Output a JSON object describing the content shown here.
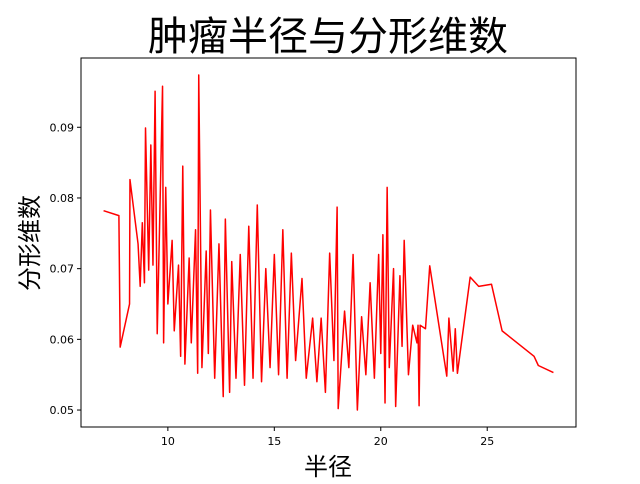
{
  "chart_data": {
    "type": "line",
    "title": "肿瘤半径与分形维数",
    "x_label": "半径",
    "y_label": "分形维数",
    "xlim": [
      5.92,
      29.17
    ],
    "ylim": [
      0.0476,
      0.0998
    ],
    "xticks": [
      10,
      15,
      20,
      25
    ],
    "yticks": [
      0.05,
      0.06,
      0.07,
      0.08,
      0.09
    ],
    "grid": false,
    "x": [
      6.98,
      7.7,
      7.76,
      8.2,
      8.22,
      8.6,
      8.7,
      8.8,
      8.9,
      8.95,
      9.1,
      9.2,
      9.3,
      9.4,
      9.5,
      9.6,
      9.75,
      9.8,
      9.9,
      10.0,
      10.2,
      10.3,
      10.5,
      10.6,
      10.7,
      10.8,
      11.0,
      11.1,
      11.3,
      11.4,
      11.45,
      11.6,
      11.8,
      11.9,
      12.0,
      12.2,
      12.4,
      12.6,
      12.7,
      12.9,
      13.0,
      13.2,
      13.4,
      13.6,
      13.8,
      14.0,
      14.2,
      14.4,
      14.6,
      14.8,
      15.0,
      15.2,
      15.4,
      15.6,
      15.8,
      16.0,
      16.3,
      16.5,
      16.8,
      17.0,
      17.2,
      17.4,
      17.6,
      17.8,
      17.95,
      18.0,
      18.3,
      18.5,
      18.7,
      18.9,
      19.1,
      19.3,
      19.5,
      19.7,
      19.9,
      20.0,
      20.1,
      20.2,
      20.3,
      20.4,
      20.6,
      20.7,
      20.9,
      21.0,
      21.1,
      21.3,
      21.5,
      21.7,
      21.75,
      21.8,
      21.85,
      22.1,
      22.3,
      23.1,
      23.2,
      23.4,
      23.5,
      23.6,
      24.2,
      24.6,
      25.2,
      25.7,
      27.2,
      27.4,
      28.11
    ],
    "series": [
      {
        "name": "分形维数",
        "color": "#ff0000",
        "values": [
          0.0782,
          0.0775,
          0.0589,
          0.065,
          0.0826,
          0.0735,
          0.0675,
          0.0765,
          0.068,
          0.0899,
          0.0698,
          0.0875,
          0.0705,
          0.0951,
          0.0608,
          0.0745,
          0.0958,
          0.0595,
          0.0815,
          0.065,
          0.074,
          0.0612,
          0.0705,
          0.0576,
          0.0845,
          0.0565,
          0.0715,
          0.0595,
          0.0755,
          0.0552,
          0.0974,
          0.056,
          0.0725,
          0.058,
          0.0783,
          0.0545,
          0.0735,
          0.0519,
          0.077,
          0.0525,
          0.071,
          0.0545,
          0.072,
          0.0535,
          0.076,
          0.0545,
          0.079,
          0.054,
          0.07,
          0.056,
          0.072,
          0.055,
          0.0755,
          0.0545,
          0.0722,
          0.057,
          0.0686,
          0.0545,
          0.063,
          0.054,
          0.063,
          0.0525,
          0.0722,
          0.057,
          0.0787,
          0.0502,
          0.064,
          0.056,
          0.072,
          0.05,
          0.0632,
          0.055,
          0.068,
          0.0545,
          0.072,
          0.058,
          0.0748,
          0.051,
          0.0815,
          0.056,
          0.07,
          0.0505,
          0.069,
          0.059,
          0.074,
          0.055,
          0.062,
          0.0595,
          0.062,
          0.0506,
          0.062,
          0.0615,
          0.0704,
          0.0548,
          0.063,
          0.0555,
          0.0615,
          0.0552,
          0.0688,
          0.0675,
          0.0678,
          0.0612,
          0.0576,
          0.0563,
          0.0553
        ]
      }
    ]
  }
}
